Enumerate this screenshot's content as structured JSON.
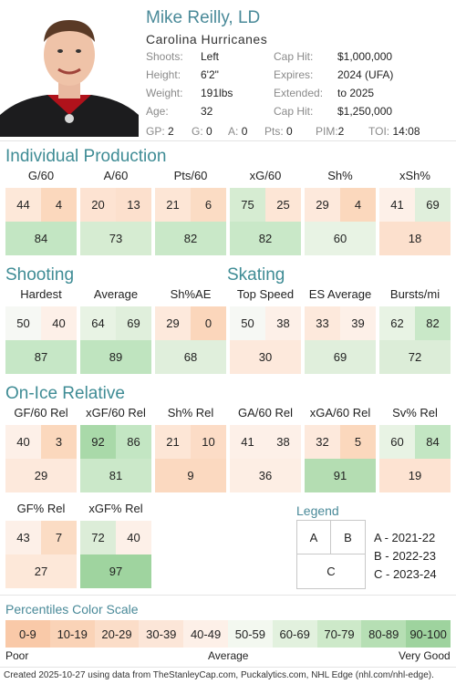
{
  "player": {
    "name": "Mike Reilly, LD",
    "team": "Carolina Hurricanes",
    "info_left": [
      {
        "label": "Shoots:",
        "value": "Left"
      },
      {
        "label": "Height:",
        "value": "6'2\""
      },
      {
        "label": "Weight:",
        "value": "191lbs"
      },
      {
        "label": "Age:",
        "value": "32"
      }
    ],
    "info_right": [
      {
        "label": "Cap Hit:",
        "value": "$1,000,000"
      },
      {
        "label": "Expires:",
        "value": "2024 (UFA)"
      },
      {
        "label": "Extended:",
        "value": "to 2025"
      },
      {
        "label": "Cap Hit:",
        "value": "$1,250,000"
      }
    ],
    "stats": [
      {
        "label": "GP:",
        "value": "2"
      },
      {
        "label": "G:",
        "value": "0"
      },
      {
        "label": "A:",
        "value": "0"
      },
      {
        "label": "Pts:",
        "value": "0"
      },
      {
        "label": "PIM:",
        "value": "2"
      },
      {
        "label": "TOI:",
        "value": "14:08"
      }
    ]
  },
  "sections": {
    "individual": "Individual Production",
    "shooting": "Shooting",
    "skating": "Skating",
    "onice": "On-Ice Relative"
  },
  "metrics_row1": [
    {
      "name": "G/60",
      "a": "44",
      "b": "4",
      "c": "84",
      "ca": "#fde8d9",
      "cb": "#fbd8bd",
      "cc": "#c3e6c3"
    },
    {
      "name": "A/60",
      "a": "20",
      "b": "13",
      "c": "73",
      "ca": "#fde3d2",
      "cb": "#fce0cd",
      "cc": "#d6ecd2"
    },
    {
      "name": "Pts/60",
      "a": "21",
      "b": "6",
      "c": "82",
      "ca": "#fde6d6",
      "cb": "#fbdcc4",
      "cc": "#c9e8c8"
    },
    {
      "name": "xG/60",
      "a": "75",
      "b": "25",
      "c": "82",
      "ca": "#d6ecd2",
      "cb": "#fde6d6",
      "cc": "#c9e8c8"
    },
    {
      "name": "Sh%",
      "a": "29",
      "b": "4",
      "c": "60",
      "ca": "#fde9dc",
      "cb": "#fbd8bd",
      "cc": "#e8f3e4"
    },
    {
      "name": "xSh%",
      "a": "41",
      "b": "69",
      "c": "18",
      "ca": "#fdf0e8",
      "cb": "#e0efdc",
      "cc": "#fce0cd"
    }
  ],
  "metrics_row2": [
    {
      "name": "Hardest",
      "a": "50",
      "b": "40",
      "c": "87",
      "ca": "#f6f8f4",
      "cb": "#fdf0e8",
      "cc": "#c6e7c6"
    },
    {
      "name": "Average",
      "a": "64",
      "b": "69",
      "c": "89",
      "ca": "#e8f3e4",
      "cb": "#e0efdc",
      "cc": "#bfe4bf"
    },
    {
      "name": "Sh%AE",
      "a": "29",
      "b": "0",
      "c": "68",
      "ca": "#fde9dc",
      "cb": "#fbd6bb",
      "cc": "#e0efdc"
    },
    {
      "name": "Top Speed",
      "a": "50",
      "b": "38",
      "c": "30",
      "ca": "#f6f8f4",
      "cb": "#fdf0e8",
      "cc": "#fde9dc"
    },
    {
      "name": "ES Average",
      "a": "33",
      "b": "39",
      "c": "69",
      "ca": "#fde9dc",
      "cb": "#fdf0e8",
      "cc": "#e0efdc"
    },
    {
      "name": "Bursts/mi",
      "a": "62",
      "b": "82",
      "c": "72",
      "ca": "#e8f3e4",
      "cb": "#c9e8c8",
      "cc": "#dcedd8"
    }
  ],
  "metrics_row3": [
    {
      "name": "GF/60 Rel",
      "a": "40",
      "b": "3",
      "c": "29",
      "ca": "#fdf0e8",
      "cb": "#fbd8bd",
      "cc": "#fde9dc"
    },
    {
      "name": "xGF/60 Rel",
      "a": "92",
      "b": "86",
      "c": "81",
      "ca": "#a9d9a9",
      "cb": "#c3e6c3",
      "cc": "#cbe8c9"
    },
    {
      "name": "Sh% Rel",
      "a": "21",
      "b": "10",
      "c": "9",
      "ca": "#fde6d6",
      "cb": "#fcdcc6",
      "cc": "#fbd9c0"
    },
    {
      "name": "GA/60 Rel",
      "a": "41",
      "b": "38",
      "c": "36",
      "ca": "#fdf0e8",
      "cb": "#fdf0e8",
      "cc": "#fdeee4"
    },
    {
      "name": "xGA/60 Rel",
      "a": "32",
      "b": "5",
      "c": "91",
      "ca": "#fde9dc",
      "cb": "#fbd8bd",
      "cc": "#b4ddb2"
    },
    {
      "name": "Sv% Rel",
      "a": "60",
      "b": "84",
      "c": "19",
      "ca": "#e8f3e4",
      "cb": "#c3e6c3",
      "cc": "#fde3d2"
    }
  ],
  "metrics_row4": [
    {
      "name": "GF% Rel",
      "a": "43",
      "b": "7",
      "c": "27",
      "ca": "#fdf0e8",
      "cb": "#fbdcc4",
      "cc": "#fde8d9"
    },
    {
      "name": "xGF% Rel",
      "a": "72",
      "b": "40",
      "c": "97",
      "ca": "#dcedd8",
      "cb": "#fdf0e8",
      "cc": "#9fd49f"
    }
  ],
  "legend": {
    "title": "Legend",
    "a": "A",
    "b": "B",
    "c": "C",
    "items": [
      "A - 2021-22",
      "B - 2022-23",
      "C - 2023-24"
    ]
  },
  "scale": {
    "title": "Percentiles Color Scale",
    "bins": [
      {
        "label": "0-9",
        "color": "#f9c9a8"
      },
      {
        "label": "10-19",
        "color": "#fad3b7"
      },
      {
        "label": "20-29",
        "color": "#fbddc8"
      },
      {
        "label": "30-39",
        "color": "#fce6d8"
      },
      {
        "label": "40-49",
        "color": "#fdf0e8"
      },
      {
        "label": "50-59",
        "color": "#f3f8f0"
      },
      {
        "label": "60-69",
        "color": "#e2f1de"
      },
      {
        "label": "70-79",
        "color": "#cde9c9"
      },
      {
        "label": "80-89",
        "color": "#b6dfb4"
      },
      {
        "label": "90-100",
        "color": "#9ed39e"
      }
    ],
    "poor": "Poor",
    "average": "Average",
    "very_good": "Very Good"
  },
  "footer": "Created 2025-10-27 using data from TheStanleyCap.com, Puckalytics.com, NHL Edge (nhl.com/nhl-edge)."
}
